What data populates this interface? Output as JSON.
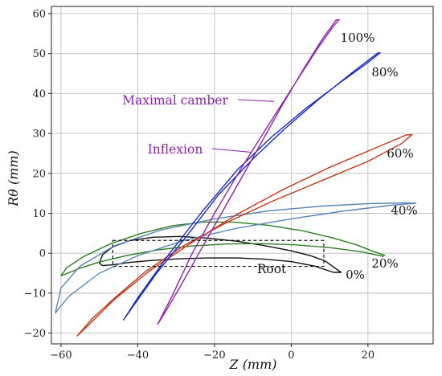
{
  "chart_data": {
    "type": "line",
    "title": "",
    "xlabel": "Z (mm)",
    "ylabel": "Rθ (mm)",
    "xlim": [
      -62.5,
      37.0
    ],
    "ylim": [
      -22.7,
      61.8
    ],
    "xticks": [
      -60,
      -40,
      -20,
      0,
      20
    ],
    "yticks": [
      -20,
      -10,
      0,
      10,
      20,
      30,
      40,
      50,
      60
    ],
    "grid": true,
    "series": [
      {
        "name": "0%",
        "color": "#111111",
        "x": [
          -50.0,
          -49.2,
          -46.5,
          -42,
          -36,
          -29,
          -22,
          -14,
          -7,
          0,
          5,
          8.5,
          9.2,
          13.0,
          11.0,
          6,
          0,
          -7,
          -14,
          -22,
          -29,
          -36,
          -42,
          -46.5,
          -49.2,
          -50.0
        ],
        "y": [
          -2.5,
          -0.4,
          1.6,
          3.2,
          4.0,
          4.2,
          3.8,
          3.0,
          1.9,
          0.6,
          -0.6,
          -1.8,
          -2.2,
          -4.8,
          -4.8,
          -3.2,
          -2.1,
          -1.5,
          -1.2,
          -1.2,
          -1.4,
          -1.8,
          -2.3,
          -2.9,
          -3.1,
          -2.5
        ],
        "label_pos": [
          0,
          0
        ]
      },
      {
        "name": "20%",
        "color": "#2a7d1f",
        "x": [
          -60.0,
          -58.5,
          -54,
          -47,
          -39,
          -31,
          -23,
          -15,
          -6,
          3,
          11,
          17,
          21,
          24.3,
          24.0,
          18,
          10,
          1,
          -8,
          -17,
          -26,
          -35,
          -43,
          -50,
          -55.5,
          -59,
          -60.0
        ],
        "y": [
          -5.6,
          -3.6,
          -0.8,
          2.4,
          5.0,
          6.9,
          7.8,
          7.8,
          7.0,
          5.6,
          3.8,
          2.1,
          0.6,
          -0.5,
          -0.8,
          0.4,
          1.4,
          2.1,
          2.4,
          2.3,
          1.8,
          0.8,
          -0.6,
          -2.2,
          -3.9,
          -5.3,
          -5.6
        ],
        "label_pos": [
          0,
          0
        ]
      },
      {
        "name": "40%",
        "color": "#5b87b7",
        "x": [
          -61.5,
          -58,
          -50,
          -40,
          -28,
          -14,
          0,
          14,
          26,
          32.5,
          30,
          20,
          8,
          -6,
          -20,
          -34,
          -46,
          -55,
          -60,
          -61.5
        ],
        "y": [
          -15.0,
          -10.8,
          -5.0,
          -0.6,
          3.2,
          6.3,
          8.6,
          10.6,
          12.0,
          12.5,
          12.6,
          12.4,
          11.8,
          10.6,
          8.6,
          5.8,
          1.9,
          -3.2,
          -8.7,
          -15.0
        ],
        "label_pos": [
          0,
          0
        ]
      },
      {
        "name": "60%",
        "color": "#c4391a",
        "x": [
          -55.8,
          -52,
          -46,
          -38,
          -28,
          -17,
          -5,
          8,
          20,
          28.5,
          31.5,
          30,
          22,
          10,
          -2,
          -14,
          -26,
          -37,
          -46,
          -52,
          -55.8
        ],
        "y": [
          -20.7,
          -16.5,
          -11.2,
          -4.6,
          1.9,
          7.6,
          13.0,
          18.2,
          23.0,
          27.3,
          29.7,
          29.6,
          26.4,
          21.5,
          16.0,
          9.8,
          2.6,
          -4.5,
          -11.5,
          -17.2,
          -20.7
        ],
        "label_pos": [
          0,
          0
        ]
      },
      {
        "name": "80%",
        "color": "#1a2bbf",
        "x": [
          -43.7,
          -40,
          -32,
          -23,
          -14,
          -5,
          4,
          13,
          19.5,
          23.2,
          22.5,
          16,
          7,
          -2,
          -10,
          -19,
          -27,
          -35,
          -41,
          -43.7
        ],
        "y": [
          -16.7,
          -11.2,
          -0.4,
          10.7,
          20.9,
          29.2,
          36.4,
          42.9,
          47.4,
          50.2,
          50.1,
          45.3,
          38.4,
          30.9,
          23.6,
          14.6,
          4.6,
          -4.9,
          -13.0,
          -16.7
        ],
        "label_pos": [
          0,
          0
        ]
      },
      {
        "name": "100%",
        "color": "#8e24aa",
        "x": [
          -34.8,
          -31,
          -26,
          -20,
          -13,
          -6,
          0.6,
          6.6,
          10.8,
          12.5,
          11.7,
          8.1,
          3.4,
          -2.4,
          -9,
          -16,
          -23,
          -29,
          -33,
          -34.8
        ],
        "y": [
          -17.8,
          -10.6,
          -0.4,
          10.0,
          21.3,
          32.0,
          41.9,
          50.9,
          56.6,
          58.5,
          58.4,
          53.6,
          46.4,
          37.0,
          25.6,
          13.7,
          1.8,
          -8.5,
          -15.0,
          -17.8
        ],
        "label_pos": [
          0,
          0
        ]
      }
    ],
    "root_box": {
      "name": "Root",
      "x": [
        -46.5,
        8.5
      ],
      "y": [
        -3.3,
        3.2
      ]
    },
    "annotations": [
      {
        "text": "Maximal camber",
        "color": "#8e24aa",
        "target": [
          -4.5,
          38.0
        ]
      },
      {
        "text": "Inflexion",
        "color": "#8e24aa",
        "target": [
          -10.5,
          25.3
        ]
      },
      {
        "text": "Root",
        "color": "#111111"
      }
    ],
    "series_labels": [
      "0%",
      "20%",
      "40%",
      "60%",
      "80%",
      "100%"
    ],
    "theta_symbol": "θ"
  }
}
